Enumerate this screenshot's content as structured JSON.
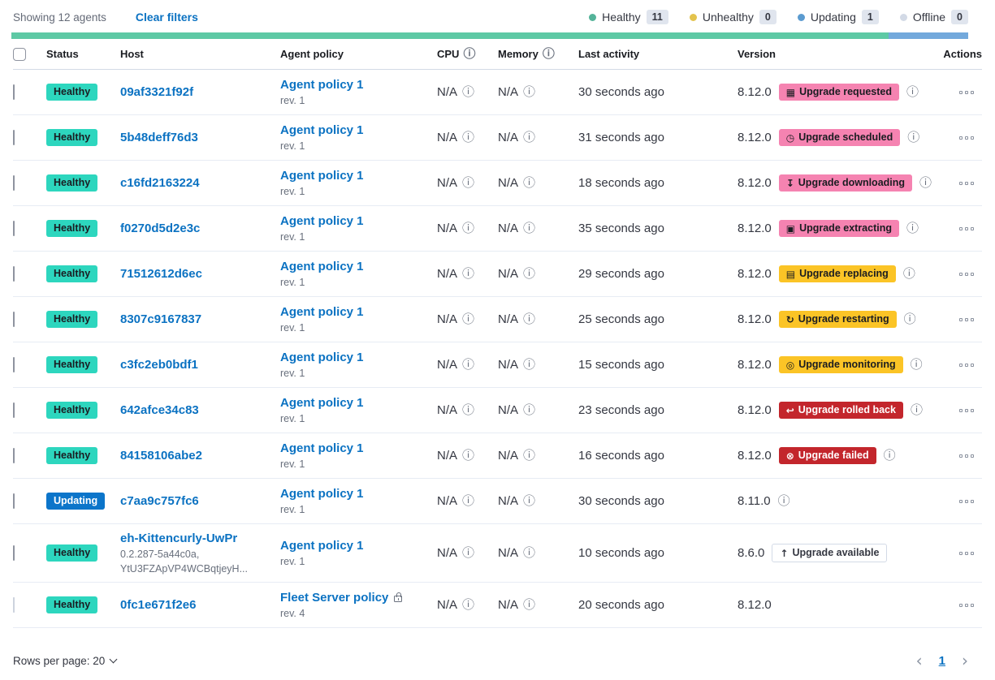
{
  "header": {
    "showing": "Showing 12 agents",
    "clear_filters": "Clear filters",
    "legend": [
      {
        "label": "Healthy",
        "count": "11",
        "dot_color": "#54b399"
      },
      {
        "label": "Unhealthy",
        "count": "0",
        "dot_color": "#e3c34d"
      },
      {
        "label": "Updating",
        "count": "1",
        "dot_color": "#5b9bd0"
      },
      {
        "label": "Offline",
        "count": "0",
        "dot_color": "#d3dae6"
      }
    ],
    "health_bar": [
      {
        "color": "#5ec9a5",
        "fraction": 0.917
      },
      {
        "color": "#73a9dc",
        "fraction": 0.083
      }
    ]
  },
  "colors": {
    "healthy_badge": "#2dd6be",
    "updating_badge": "#0c75ca",
    "accent_badge": "#f583b1",
    "warning_badge": "#fbc426",
    "danger_badge": "#c3262c",
    "link": "#0b72c2",
    "bar_green": "#5ec9a5",
    "bar_blue": "#73a9dc"
  },
  "table": {
    "columns": {
      "status": "Status",
      "host": "Host",
      "policy": "Agent policy",
      "cpu": "CPU",
      "memory": "Memory",
      "last_activity": "Last activity",
      "version": "Version",
      "actions": "Actions"
    },
    "rows": [
      {
        "status": "Healthy",
        "status_type": "healthy",
        "host": "09af3321f92f",
        "host_sub1": "",
        "host_sub2": "",
        "policy": "Agent policy 1",
        "policy_rev": "rev. 1",
        "lock": false,
        "cpu": "N/A",
        "memory": "N/A",
        "last_activity": "30 seconds ago",
        "version": "8.12.0",
        "upgrade_label": "Upgrade requested",
        "upgrade_glyph": "▦",
        "upgrade_icon": "calendar-icon",
        "upgrade_type": "accent",
        "has_info": true,
        "checkbox_disabled": false
      },
      {
        "status": "Healthy",
        "status_type": "healthy",
        "host": "5b48deff76d3",
        "host_sub1": "",
        "host_sub2": "",
        "policy": "Agent policy 1",
        "policy_rev": "rev. 1",
        "lock": false,
        "cpu": "N/A",
        "memory": "N/A",
        "last_activity": "31 seconds ago",
        "version": "8.12.0",
        "upgrade_label": "Upgrade scheduled",
        "upgrade_glyph": "◷",
        "upgrade_icon": "clock-icon",
        "upgrade_type": "accent",
        "has_info": true,
        "checkbox_disabled": false
      },
      {
        "status": "Healthy",
        "status_type": "healthy",
        "host": "c16fd2163224",
        "host_sub1": "",
        "host_sub2": "",
        "policy": "Agent policy 1",
        "policy_rev": "rev. 1",
        "lock": false,
        "cpu": "N/A",
        "memory": "N/A",
        "last_activity": "18 seconds ago",
        "version": "8.12.0",
        "upgrade_label": "Upgrade downloading",
        "upgrade_glyph": "↧",
        "upgrade_icon": "download-icon",
        "upgrade_type": "accent",
        "has_info": true,
        "checkbox_disabled": false
      },
      {
        "status": "Healthy",
        "status_type": "healthy",
        "host": "f0270d5d2e3c",
        "host_sub1": "",
        "host_sub2": "",
        "policy": "Agent policy 1",
        "policy_rev": "rev. 1",
        "lock": false,
        "cpu": "N/A",
        "memory": "N/A",
        "last_activity": "35 seconds ago",
        "version": "8.12.0",
        "upgrade_label": "Upgrade extracting",
        "upgrade_glyph": "▣",
        "upgrade_icon": "package-icon",
        "upgrade_type": "accent",
        "has_info": true,
        "checkbox_disabled": false
      },
      {
        "status": "Healthy",
        "status_type": "healthy",
        "host": "71512612d6ec",
        "host_sub1": "",
        "host_sub2": "",
        "policy": "Agent policy 1",
        "policy_rev": "rev. 1",
        "lock": false,
        "cpu": "N/A",
        "memory": "N/A",
        "last_activity": "29 seconds ago",
        "version": "8.12.0",
        "upgrade_label": "Upgrade replacing",
        "upgrade_glyph": "▤",
        "upgrade_icon": "document-icon",
        "upgrade_type": "warning",
        "has_info": true,
        "checkbox_disabled": false
      },
      {
        "status": "Healthy",
        "status_type": "healthy",
        "host": "8307c9167837",
        "host_sub1": "",
        "host_sub2": "",
        "policy": "Agent policy 1",
        "policy_rev": "rev. 1",
        "lock": false,
        "cpu": "N/A",
        "memory": "N/A",
        "last_activity": "25 seconds ago",
        "version": "8.12.0",
        "upgrade_label": "Upgrade restarting",
        "upgrade_glyph": "↻",
        "upgrade_icon": "refresh-icon",
        "upgrade_type": "warning",
        "has_info": true,
        "checkbox_disabled": false
      },
      {
        "status": "Healthy",
        "status_type": "healthy",
        "host": "c3fc2eb0bdf1",
        "host_sub1": "",
        "host_sub2": "",
        "policy": "Agent policy 1",
        "policy_rev": "rev. 1",
        "lock": false,
        "cpu": "N/A",
        "memory": "N/A",
        "last_activity": "15 seconds ago",
        "version": "8.12.0",
        "upgrade_label": "Upgrade monitoring",
        "upgrade_glyph": "◎",
        "upgrade_icon": "inspect-icon",
        "upgrade_type": "warning",
        "has_info": true,
        "checkbox_disabled": false
      },
      {
        "status": "Healthy",
        "status_type": "healthy",
        "host": "642afce34c83",
        "host_sub1": "",
        "host_sub2": "",
        "policy": "Agent policy 1",
        "policy_rev": "rev. 1",
        "lock": false,
        "cpu": "N/A",
        "memory": "N/A",
        "last_activity": "23 seconds ago",
        "version": "8.12.0",
        "upgrade_label": "Upgrade rolled back",
        "upgrade_glyph": "↩",
        "upgrade_icon": "return-icon",
        "upgrade_type": "danger",
        "has_info": true,
        "checkbox_disabled": false
      },
      {
        "status": "Healthy",
        "status_type": "healthy",
        "host": "84158106abe2",
        "host_sub1": "",
        "host_sub2": "",
        "policy": "Agent policy 1",
        "policy_rev": "rev. 1",
        "lock": false,
        "cpu": "N/A",
        "memory": "N/A",
        "last_activity": "16 seconds ago",
        "version": "8.12.0",
        "upgrade_label": "Upgrade failed",
        "upgrade_glyph": "⊗",
        "upgrade_icon": "error-cross-icon",
        "upgrade_type": "danger",
        "has_info": true,
        "checkbox_disabled": false
      },
      {
        "status": "Updating",
        "status_type": "updating",
        "host": "c7aa9c757fc6",
        "host_sub1": "",
        "host_sub2": "",
        "policy": "Agent policy 1",
        "policy_rev": "rev. 1",
        "lock": false,
        "cpu": "N/A",
        "memory": "N/A",
        "last_activity": "30 seconds ago",
        "version": "8.11.0",
        "upgrade_label": "",
        "upgrade_glyph": "",
        "upgrade_icon": "",
        "upgrade_type": "",
        "has_info": true,
        "checkbox_disabled": false
      },
      {
        "status": "Healthy",
        "status_type": "healthy",
        "host": "eh-Kittencurly-UwPr",
        "host_sub1": "0.2.287-5a44c0a,",
        "host_sub2": "YtU3FZApVP4WCBqtjeyH...",
        "policy": "Agent policy 1",
        "policy_rev": "rev. 1",
        "lock": false,
        "cpu": "N/A",
        "memory": "N/A",
        "last_activity": "10 seconds ago",
        "version": "8.6.0",
        "upgrade_label": "Upgrade available",
        "upgrade_glyph": "↑",
        "upgrade_icon": "arrow-up-icon",
        "upgrade_type": "hollow",
        "has_info": false,
        "checkbox_disabled": false
      },
      {
        "status": "Healthy",
        "status_type": "healthy",
        "host": "0fc1e671f2e6",
        "host_sub1": "",
        "host_sub2": "",
        "policy": "Fleet Server policy",
        "policy_rev": "rev. 4",
        "lock": true,
        "cpu": "N/A",
        "memory": "N/A",
        "last_activity": "20 seconds ago",
        "version": "8.12.0",
        "upgrade_label": "",
        "upgrade_glyph": "",
        "upgrade_icon": "",
        "upgrade_type": "",
        "has_info": false,
        "checkbox_disabled": true
      }
    ]
  },
  "footer": {
    "rows_per_page": "Rows per page: 20",
    "page": "1"
  },
  "icons": {
    "info": "ⓘ"
  }
}
